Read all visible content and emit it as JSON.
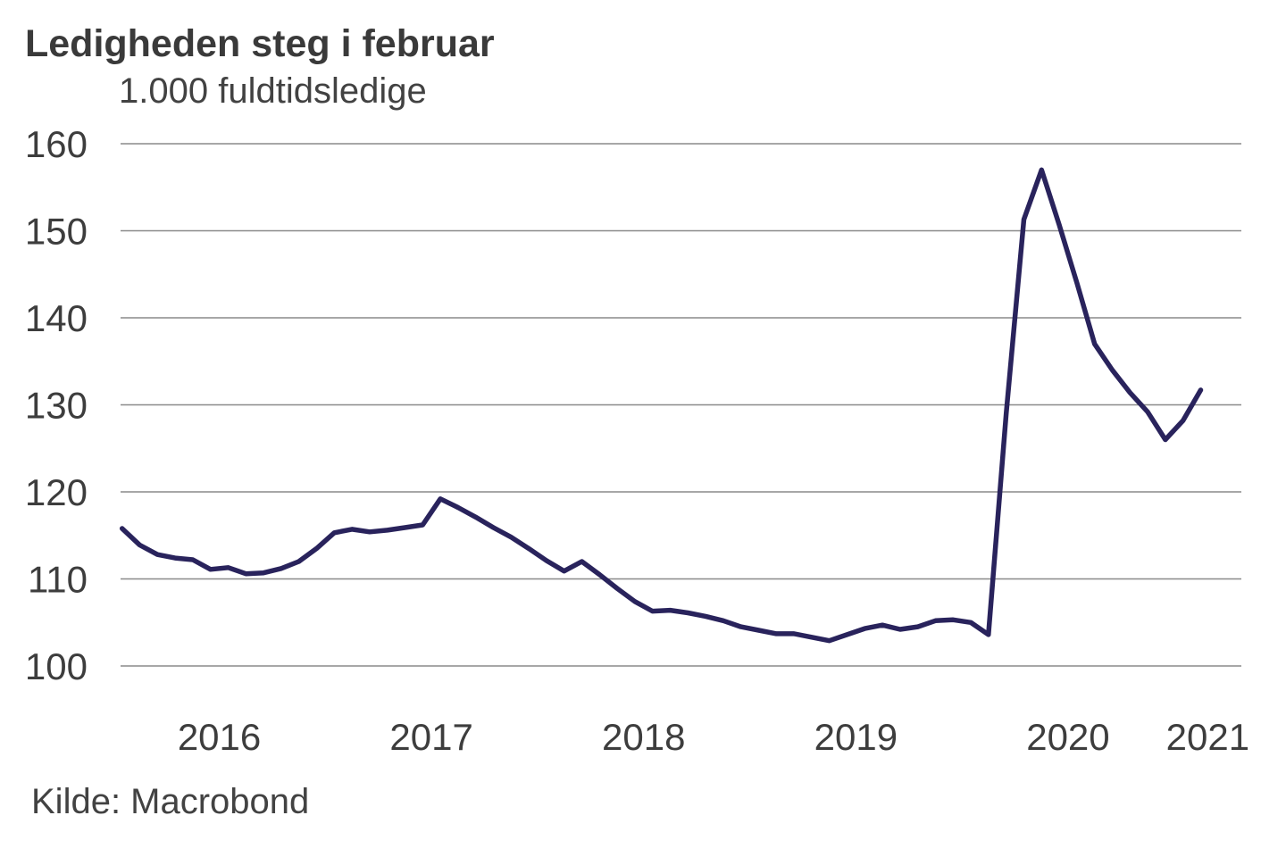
{
  "chart_data": {
    "type": "line",
    "title": "Ledigheden steg i februar",
    "subtitle": "1.000 fuldtidsledige",
    "source": "Kilde: Macrobond",
    "frequency": "monthly",
    "x_start": "2016-01",
    "x_end": "2021-02",
    "x_tick_labels": [
      "2016",
      "2017",
      "2018",
      "2019",
      "2020",
      "2021"
    ],
    "y_ticks": [
      100,
      110,
      120,
      130,
      140,
      150,
      160
    ],
    "ylim": [
      100,
      160
    ],
    "grid": "horizontal",
    "legend": "none",
    "series": [
      {
        "name": "Fuldtidsledige (1.000 personer)",
        "color": "#29235c",
        "values": [
          115.8,
          113.9,
          112.8,
          112.4,
          112.2,
          111.1,
          111.3,
          110.6,
          110.7,
          111.2,
          112.0,
          113.5,
          115.3,
          115.7,
          115.4,
          115.6,
          115.9,
          116.2,
          119.2,
          118.2,
          117.1,
          115.9,
          114.8,
          113.5,
          112.1,
          110.9,
          112.0,
          110.5,
          108.9,
          107.4,
          106.3,
          106.4,
          106.1,
          105.7,
          105.2,
          104.5,
          104.1,
          103.7,
          103.7,
          103.3,
          102.9,
          103.6,
          104.3,
          104.7,
          104.2,
          104.5,
          105.2,
          105.3,
          105.0,
          103.6,
          129.0,
          151.3,
          157.0,
          150.7,
          144.0,
          137.0,
          134.0,
          131.4,
          129.2,
          126.0,
          128.2,
          131.7
        ]
      }
    ],
    "colors": {
      "line": "#29235c",
      "grid": "#8a8a8a",
      "text": "#3d3d3d",
      "background": "#ffffff"
    }
  }
}
